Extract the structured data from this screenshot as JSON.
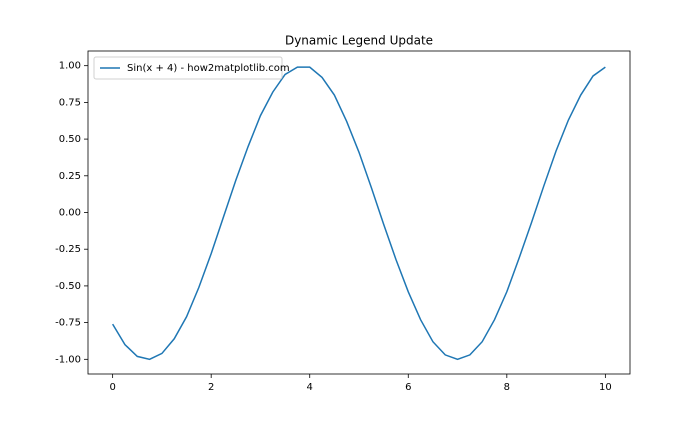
{
  "chart_data": {
    "type": "line",
    "title": "Dynamic Legend Update",
    "x": [
      0,
      0.25,
      0.5,
      0.75,
      1,
      1.25,
      1.5,
      1.75,
      2,
      2.25,
      2.5,
      2.75,
      3,
      3.25,
      3.5,
      3.75,
      4,
      4.25,
      4.5,
      4.75,
      5,
      5.25,
      5.5,
      5.75,
      6,
      6.25,
      6.5,
      6.75,
      7,
      7.25,
      7.5,
      7.75,
      8,
      8.25,
      8.5,
      8.75,
      9,
      9.25,
      9.5,
      9.75,
      10
    ],
    "series": [
      {
        "name": "Sin(x + 4) - how2matplotlib.com",
        "color": "#1f77b4",
        "values": [
          -0.76,
          -0.9,
          -0.98,
          -1.0,
          -0.96,
          -0.86,
          -0.71,
          -0.51,
          -0.28,
          -0.03,
          0.22,
          0.45,
          0.66,
          0.82,
          0.94,
          0.99,
          0.99,
          0.92,
          0.8,
          0.62,
          0.41,
          0.17,
          -0.08,
          -0.32,
          -0.54,
          -0.73,
          -0.88,
          -0.97,
          -1.0,
          -0.97,
          -0.88,
          -0.73,
          -0.54,
          -0.31,
          -0.07,
          0.18,
          0.42,
          0.63,
          0.8,
          0.93,
          0.99
        ]
      }
    ],
    "xlim": [
      -0.5,
      10.5
    ],
    "ylim": [
      -1.1,
      1.1
    ],
    "xticks": [
      0,
      2,
      4,
      6,
      8,
      10
    ],
    "yticks": [
      {
        "value": -1,
        "label": "-1.00"
      },
      {
        "value": -0.75,
        "label": "-0.75"
      },
      {
        "value": -0.5,
        "label": "-0.50"
      },
      {
        "value": -0.25,
        "label": "-0.25"
      },
      {
        "value": 0,
        "label": "0.00"
      },
      {
        "value": 0.25,
        "label": "0.25"
      },
      {
        "value": 0.5,
        "label": "0.50"
      },
      {
        "value": 0.75,
        "label": "0.75"
      },
      {
        "value": 1,
        "label": "1.00"
      }
    ],
    "legend": "upper left",
    "grid": false
  }
}
